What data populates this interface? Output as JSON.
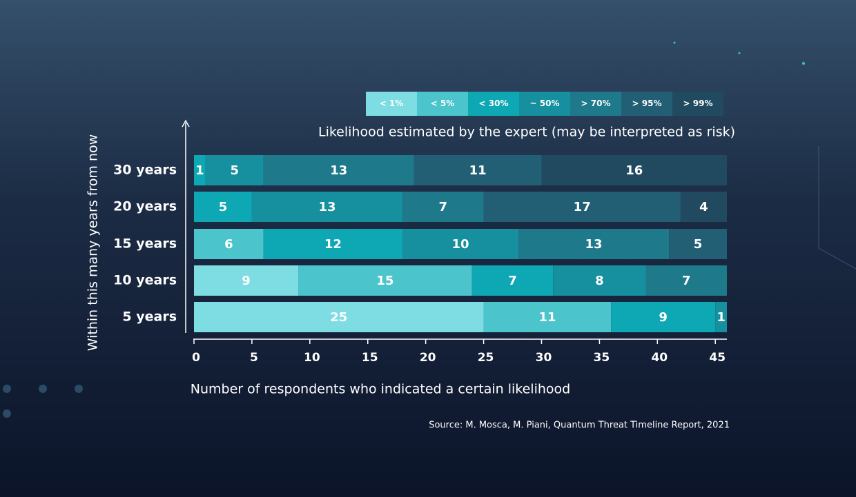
{
  "chart_data": {
    "type": "stacked-bar",
    "orientation": "horizontal",
    "legend_title": "Likelihood estimated by the expert (may be interpreted as risk)",
    "xlabel": "Number of respondents who indicated a certain likelihood",
    "ylabel": "Within this many years from now",
    "source": "Source: M. Mosca, M. Piani, Quantum Threat Timeline Report, 2021",
    "categories": [
      "30 years",
      "20 years",
      "15 years",
      "10 years",
      "5 years"
    ],
    "series": [
      {
        "name": "< 1%",
        "color": "#7ddde3",
        "values": [
          null,
          null,
          null,
          9,
          25
        ]
      },
      {
        "name": "< 5%",
        "color": "#4cc4cc",
        "values": [
          null,
          null,
          6,
          15,
          11
        ]
      },
      {
        "name": "< 30%",
        "color": "#0ea8b4",
        "values": [
          1,
          5,
          12,
          7,
          9
        ]
      },
      {
        "name": "~ 50%",
        "color": "#168f9e",
        "values": [
          5,
          13,
          10,
          8,
          1
        ]
      },
      {
        "name": "> 70%",
        "color": "#1e798b",
        "values": [
          13,
          7,
          13,
          7,
          null
        ]
      },
      {
        "name": "> 95%",
        "color": "#235f74",
        "values": [
          11,
          17,
          5,
          null,
          null
        ]
      },
      {
        "name": "> 99%",
        "color": "#214a60",
        "values": [
          16,
          4,
          null,
          null,
          null
        ]
      }
    ],
    "xlim": [
      0,
      46
    ],
    "xticks": [
      0,
      5,
      10,
      15,
      20,
      25,
      30,
      35,
      40,
      45
    ]
  }
}
